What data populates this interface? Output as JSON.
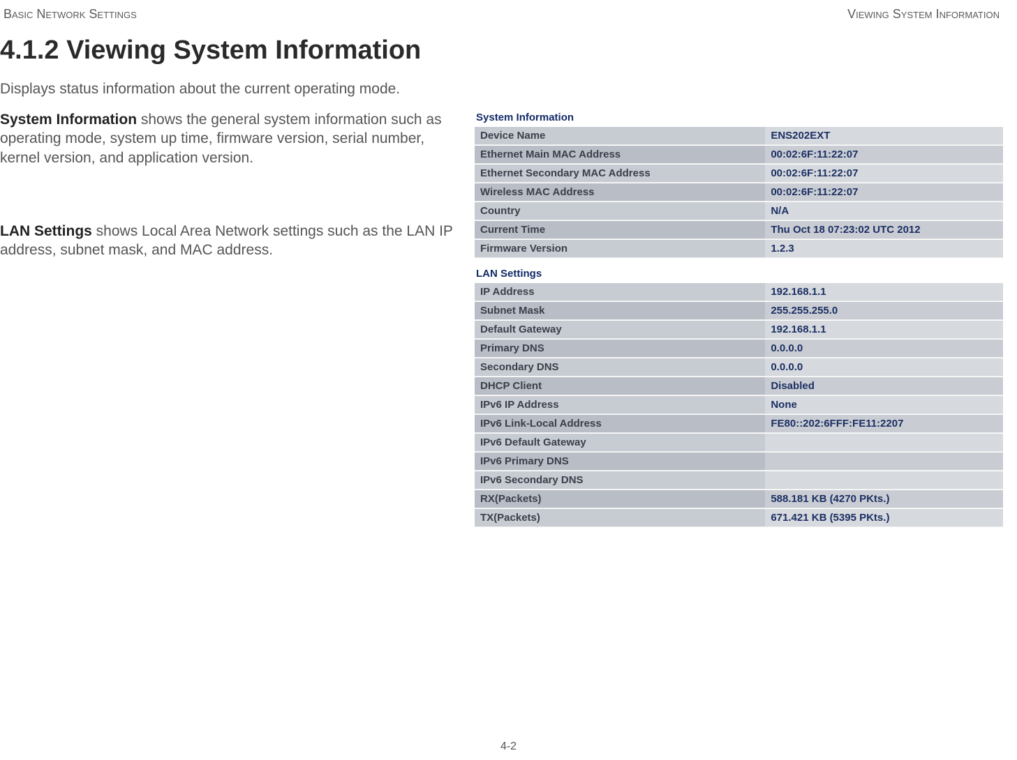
{
  "header": {
    "left": "Basic Network Settings",
    "right": "Viewing System Information"
  },
  "title": "4.1.2 Viewing System Information",
  "intro": "Displays status information about the current operating mode.",
  "sysinfo_desc_bold": "System Information",
  "sysinfo_desc_rest": "  shows the general system information such as operating mode, system up time, firmware version, serial number, kernel version, and application version.",
  "lan_desc_bold": "LAN Settings",
  "lan_desc_rest": "  shows Local Area Network settings such as the LAN IP address, subnet mask, and MAC address.",
  "panels": {
    "sys_title": "System Information",
    "lan_title": "LAN Settings"
  },
  "sys_rows": [
    {
      "k": "Device Name",
      "v": "ENS202EXT"
    },
    {
      "k": "Ethernet Main MAC Address",
      "v": "00:02:6F:11:22:07"
    },
    {
      "k": "Ethernet Secondary MAC Address",
      "v": "00:02:6F:11:22:07"
    },
    {
      "k": "Wireless MAC Address",
      "v": "00:02:6F:11:22:07"
    },
    {
      "k": "Country",
      "v": "N/A"
    },
    {
      "k": "Current Time",
      "v": "Thu Oct 18 07:23:02 UTC 2012"
    },
    {
      "k": "Firmware Version",
      "v": "1.2.3"
    }
  ],
  "lan_rows": [
    {
      "k": "IP Address",
      "v": "192.168.1.1"
    },
    {
      "k": "Subnet Mask",
      "v": "255.255.255.0"
    },
    {
      "k": "Default Gateway",
      "v": "192.168.1.1"
    },
    {
      "k": "Primary DNS",
      "v": "0.0.0.0"
    },
    {
      "k": "Secondary DNS",
      "v": "0.0.0.0"
    },
    {
      "k": "DHCP Client",
      "v": "Disabled"
    },
    {
      "k": "IPv6 IP Address",
      "v": "None"
    },
    {
      "k": "IPv6 Link-Local Address",
      "v": "FE80::202:6FFF:FE11:2207"
    },
    {
      "k": "IPv6 Default Gateway",
      "v": ""
    },
    {
      "k": "IPv6 Primary DNS",
      "v": ""
    },
    {
      "k": "IPv6 Secondary DNS",
      "v": ""
    },
    {
      "k": "RX(Packets)",
      "v": "588.181 KB (4270 PKts.)"
    },
    {
      "k": "TX(Packets)",
      "v": "671.421 KB (5395 PKts.)"
    }
  ],
  "footer": "4-2"
}
